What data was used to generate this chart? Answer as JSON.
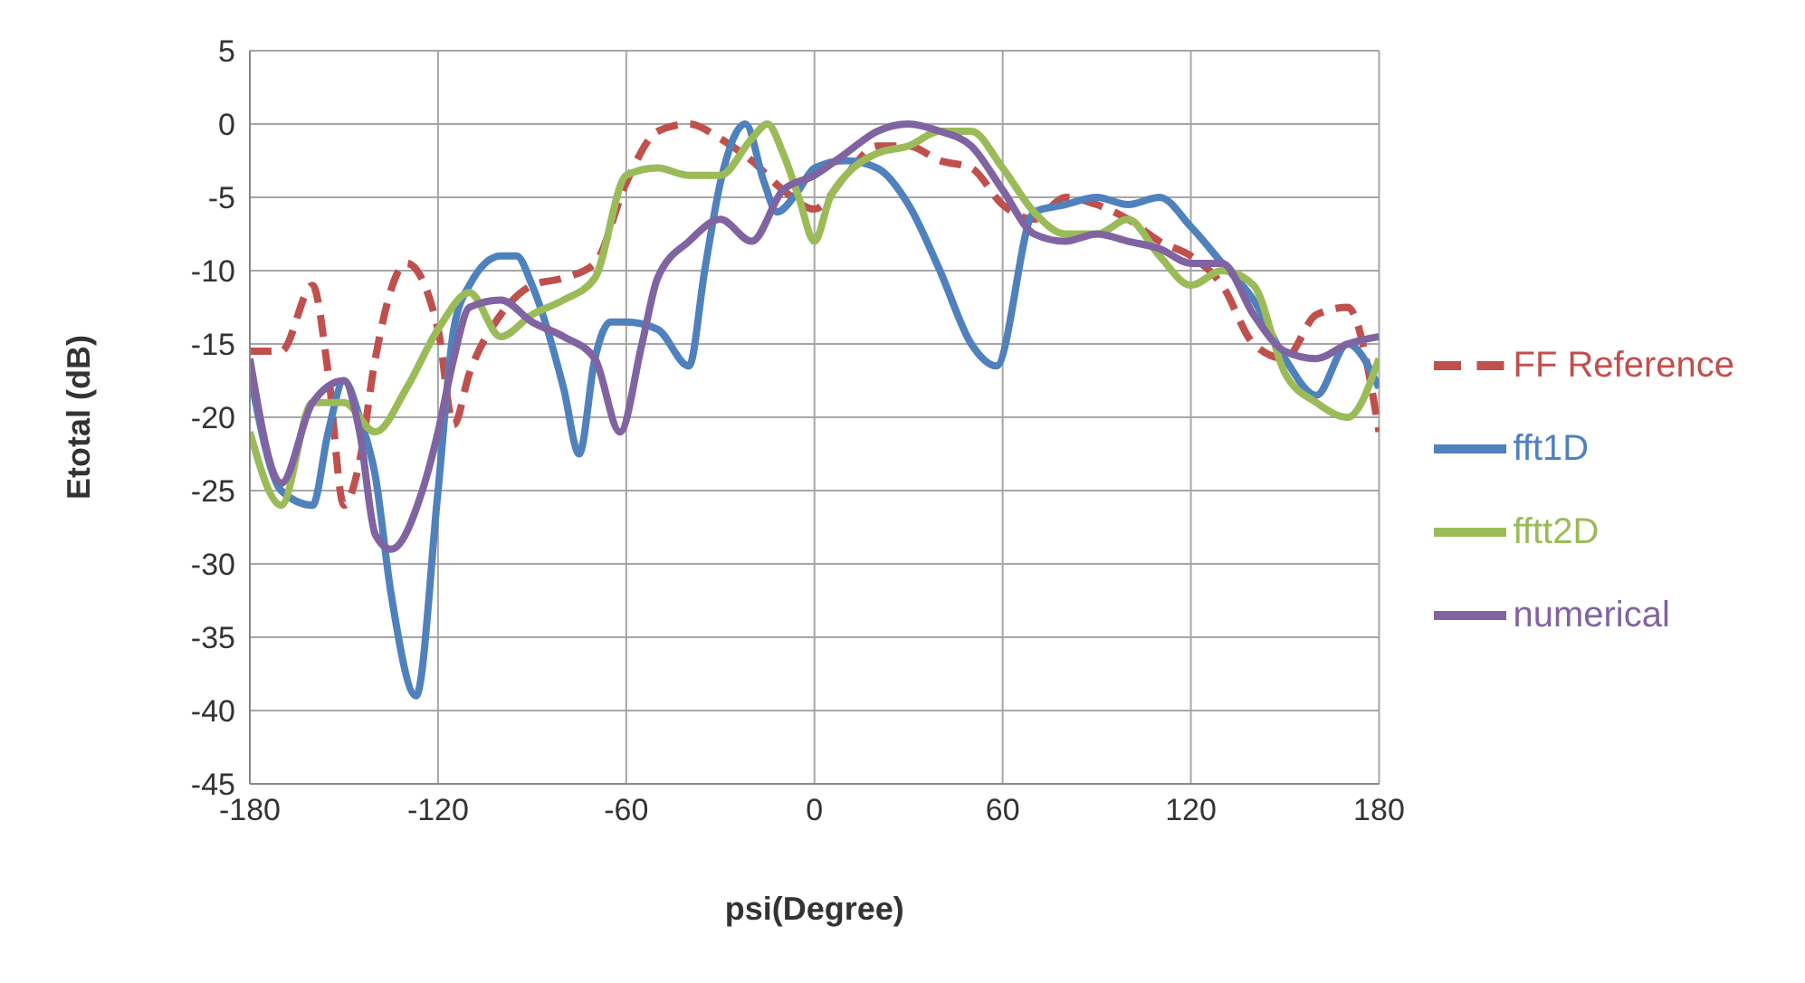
{
  "chart_data": {
    "type": "line",
    "xlabel": "psi(Degree)",
    "ylabel": "Etotal (dB)",
    "xlim": [
      -180,
      180
    ],
    "xticks": [
      -180,
      -120,
      -60,
      0,
      60,
      120,
      180
    ],
    "ylim": [
      -45,
      5
    ],
    "yticks": [
      -45,
      -40,
      -35,
      -30,
      -25,
      -20,
      -15,
      -10,
      -5,
      0,
      5
    ],
    "grid": true,
    "legend": "right",
    "marker": "none",
    "series": [
      {
        "name": "FF Reference",
        "color": "#c0504d",
        "line_style": "dashed",
        "x": [
          -180,
          -170,
          -160,
          -155,
          -150,
          -145,
          -140,
          -130,
          -120,
          -115,
          -110,
          -100,
          -90,
          -80,
          -70,
          -60,
          -50,
          -40,
          -30,
          -20,
          -10,
          0,
          10,
          20,
          30,
          40,
          50,
          60,
          70,
          80,
          90,
          100,
          110,
          120,
          130,
          140,
          150,
          160,
          170,
          180
        ],
        "values": [
          -15.5,
          -15.5,
          -11,
          -17,
          -26,
          -23,
          -16,
          -9.5,
          -14,
          -20.5,
          -17,
          -13,
          -11,
          -10.5,
          -9.5,
          -4,
          -0.5,
          0,
          -1,
          -2.5,
          -4.5,
          -5.8,
          -3.5,
          -1.5,
          -1.5,
          -2.5,
          -3,
          -5.5,
          -6.5,
          -5,
          -5.5,
          -6.5,
          -8,
          -9,
          -11,
          -15,
          -16,
          -13,
          -12.5,
          -21
        ]
      },
      {
        "name": "fft1D",
        "color": "#4f81bd",
        "line_style": "solid",
        "x": [
          -180,
          -170,
          -160,
          -155,
          -150,
          -145,
          -140,
          -135,
          -127,
          -120,
          -115,
          -110,
          -100,
          -95,
          -90,
          -80,
          -75,
          -70,
          -65,
          -60,
          -50,
          -40,
          -35,
          -30,
          -22,
          -16,
          -12,
          -5,
          0,
          10,
          20,
          30,
          40,
          50,
          58,
          70,
          80,
          90,
          100,
          110,
          120,
          130,
          140,
          150,
          160,
          170,
          180
        ],
        "values": [
          -17,
          -25,
          -26,
          -21,
          -17.5,
          -20,
          -24,
          -32,
          -39,
          -25,
          -14,
          -11,
          -9,
          -9,
          -11,
          -18,
          -22.5,
          -16,
          -13.5,
          -13.5,
          -14,
          -16.5,
          -10,
          -4,
          0,
          -4,
          -6,
          -4.5,
          -3,
          -2.5,
          -3,
          -5.5,
          -10,
          -15,
          -16.5,
          -6,
          -5.5,
          -5,
          -5.5,
          -5,
          -7,
          -9.5,
          -12,
          -16,
          -18.5,
          -15,
          -18
        ]
      },
      {
        "name": "fftt2D",
        "color": "#9bbb59",
        "line_style": "solid",
        "x": [
          -180,
          -170,
          -160,
          -150,
          -140,
          -130,
          -120,
          -110,
          -100,
          -90,
          -80,
          -70,
          -60,
          -50,
          -40,
          -30,
          -20,
          -15,
          -10,
          -5,
          0,
          5,
          10,
          20,
          30,
          40,
          50,
          60,
          70,
          80,
          90,
          100,
          110,
          120,
          130,
          140,
          150,
          160,
          170,
          180
        ],
        "values": [
          -21,
          -26,
          -19,
          -19,
          -21,
          -18,
          -14,
          -11.5,
          -14.5,
          -13,
          -12,
          -10.5,
          -3.5,
          -3,
          -3.5,
          -3.5,
          -1,
          0,
          -2,
          -5,
          -8,
          -5,
          -3.5,
          -2,
          -1.5,
          -0.5,
          -0.5,
          -3,
          -6,
          -7.5,
          -7.5,
          -6.5,
          -9,
          -11,
          -10,
          -11,
          -17,
          -19,
          -20,
          -16
        ]
      },
      {
        "name": "numerical",
        "color": "#8064a2",
        "line_style": "solid",
        "x": [
          -180,
          -170,
          -160,
          -150,
          -145,
          -140,
          -135,
          -125,
          -120,
          -115,
          -110,
          -100,
          -90,
          -80,
          -70,
          -62,
          -55,
          -50,
          -40,
          -30,
          -20,
          -10,
          0,
          10,
          20,
          30,
          40,
          50,
          60,
          70,
          80,
          90,
          100,
          110,
          120,
          130,
          140,
          150,
          160,
          170,
          180
        ],
        "values": [
          -16,
          -24.5,
          -19,
          -17.5,
          -21,
          -28,
          -29,
          -25,
          -21,
          -16,
          -12.5,
          -12,
          -13.5,
          -14.5,
          -16,
          -21,
          -15,
          -10.5,
          -8,
          -6.5,
          -8,
          -4.5,
          -3.5,
          -2,
          -0.5,
          0,
          -0.5,
          -1.5,
          -4.5,
          -7.5,
          -8,
          -7.5,
          -8,
          -8.5,
          -9.5,
          -9.5,
          -13,
          -15.5,
          -16,
          -15,
          -14.5
        ]
      }
    ]
  }
}
